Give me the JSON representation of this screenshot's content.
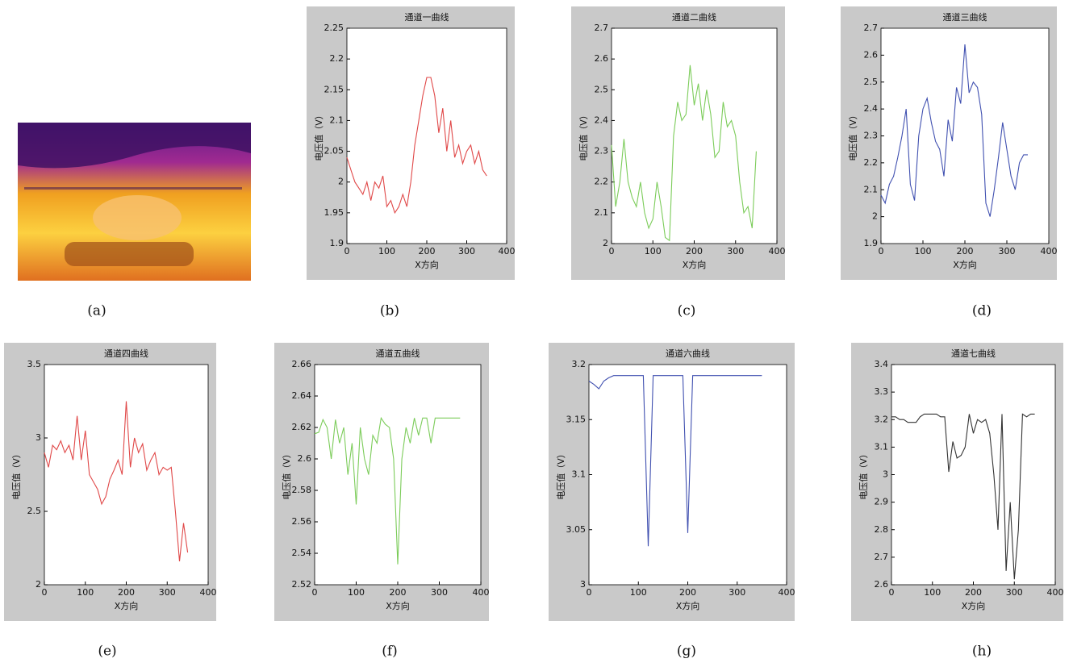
{
  "image_caption": "(a)",
  "chart_data": [
    {
      "type": "line",
      "title": "通道一曲线",
      "xlabel": "X方向",
      "ylabel": "电压值（V）",
      "caption": "(b)",
      "color": "#e04848",
      "xlim": [
        0,
        400
      ],
      "xticks": [
        0,
        100,
        200,
        300,
        400
      ],
      "ylim": [
        1.9,
        2.25
      ],
      "yticks": [
        1.9,
        1.95,
        2,
        2.05,
        2.1,
        2.15,
        2.2,
        2.25
      ],
      "x": [
        0,
        10,
        20,
        30,
        40,
        50,
        60,
        70,
        80,
        90,
        100,
        110,
        120,
        130,
        140,
        150,
        160,
        170,
        180,
        190,
        200,
        210,
        220,
        230,
        240,
        250,
        260,
        270,
        280,
        290,
        300,
        310,
        320,
        330,
        340,
        350
      ],
      "values": [
        2.04,
        2.02,
        2.0,
        1.99,
        1.98,
        2.0,
        1.97,
        2.0,
        1.99,
        2.01,
        1.96,
        1.97,
        1.95,
        1.96,
        1.98,
        1.96,
        2.0,
        2.06,
        2.1,
        2.14,
        2.17,
        2.17,
        2.14,
        2.08,
        2.12,
        2.05,
        2.1,
        2.04,
        2.06,
        2.03,
        2.05,
        2.06,
        2.03,
        2.05,
        2.02,
        2.01
      ]
    },
    {
      "type": "line",
      "title": "通道二曲线",
      "xlabel": "X方向",
      "ylabel": "电压值（V）",
      "caption": "(c)",
      "color": "#7ccc5a",
      "xlim": [
        0,
        400
      ],
      "xticks": [
        0,
        100,
        200,
        300,
        400
      ],
      "ylim": [
        2,
        2.7
      ],
      "yticks": [
        2,
        2.1,
        2.2,
        2.3,
        2.4,
        2.5,
        2.6,
        2.7
      ],
      "x": [
        0,
        10,
        20,
        30,
        40,
        50,
        60,
        70,
        80,
        90,
        100,
        110,
        120,
        130,
        140,
        150,
        160,
        170,
        180,
        190,
        200,
        210,
        220,
        230,
        240,
        250,
        260,
        270,
        280,
        290,
        300,
        310,
        320,
        330,
        340,
        350
      ],
      "values": [
        2.32,
        2.12,
        2.2,
        2.34,
        2.2,
        2.15,
        2.12,
        2.2,
        2.1,
        2.05,
        2.08,
        2.2,
        2.12,
        2.02,
        2.01,
        2.35,
        2.46,
        2.4,
        2.42,
        2.58,
        2.45,
        2.52,
        2.4,
        2.5,
        2.42,
        2.28,
        2.3,
        2.46,
        2.38,
        2.4,
        2.35,
        2.2,
        2.1,
        2.12,
        2.05,
        2.3
      ]
    },
    {
      "type": "line",
      "title": "通道三曲线",
      "xlabel": "X方向",
      "ylabel": "电压值（V）",
      "caption": "(d)",
      "color": "#4050b0",
      "xlim": [
        0,
        400
      ],
      "xticks": [
        0,
        100,
        200,
        300,
        400
      ],
      "ylim": [
        1.9,
        2.7
      ],
      "yticks": [
        1.9,
        2,
        2.1,
        2.2,
        2.3,
        2.4,
        2.5,
        2.6,
        2.7
      ],
      "x": [
        0,
        10,
        20,
        30,
        40,
        50,
        60,
        70,
        80,
        90,
        100,
        110,
        120,
        130,
        140,
        150,
        160,
        170,
        180,
        190,
        200,
        210,
        220,
        230,
        240,
        250,
        260,
        270,
        280,
        290,
        300,
        310,
        320,
        330,
        340,
        350
      ],
      "values": [
        2.08,
        2.05,
        2.12,
        2.15,
        2.22,
        2.3,
        2.4,
        2.12,
        2.06,
        2.3,
        2.4,
        2.44,
        2.35,
        2.28,
        2.25,
        2.15,
        2.36,
        2.28,
        2.48,
        2.42,
        2.64,
        2.46,
        2.5,
        2.48,
        2.38,
        2.05,
        2.0,
        2.1,
        2.22,
        2.35,
        2.25,
        2.15,
        2.1,
        2.2,
        2.23,
        2.23
      ]
    },
    {
      "type": "line",
      "title": "通道四曲线",
      "xlabel": "X方向",
      "ylabel": "电压值（V）",
      "caption": "(e)",
      "color": "#e04848",
      "xlim": [
        0,
        400
      ],
      "xticks": [
        0,
        100,
        200,
        300,
        400
      ],
      "ylim": [
        2,
        3.5
      ],
      "yticks": [
        2,
        2.5,
        3,
        3.5
      ],
      "x": [
        0,
        10,
        20,
        30,
        40,
        50,
        60,
        70,
        80,
        90,
        100,
        110,
        120,
        130,
        140,
        150,
        160,
        170,
        180,
        190,
        200,
        210,
        220,
        230,
        240,
        250,
        260,
        270,
        280,
        290,
        300,
        310,
        320,
        330,
        340,
        350
      ],
      "values": [
        2.9,
        2.8,
        2.95,
        2.92,
        2.98,
        2.9,
        2.95,
        2.85,
        3.15,
        2.85,
        3.05,
        2.75,
        2.7,
        2.65,
        2.55,
        2.6,
        2.72,
        2.78,
        2.85,
        2.75,
        3.25,
        2.8,
        3.0,
        2.9,
        2.96,
        2.78,
        2.85,
        2.9,
        2.75,
        2.8,
        2.78,
        2.8,
        2.5,
        2.16,
        2.42,
        2.22
      ]
    },
    {
      "type": "line",
      "title": "通道五曲线",
      "xlabel": "X方向",
      "ylabel": "电压值（V）",
      "caption": "(f)",
      "color": "#7ccc5a",
      "xlim": [
        0,
        400
      ],
      "xticks": [
        0,
        100,
        200,
        300,
        400
      ],
      "ylim": [
        2.52,
        2.66
      ],
      "yticks": [
        2.52,
        2.54,
        2.56,
        2.58,
        2.6,
        2.62,
        2.64,
        2.66
      ],
      "x": [
        0,
        10,
        20,
        30,
        40,
        50,
        60,
        70,
        80,
        90,
        100,
        110,
        120,
        130,
        140,
        150,
        160,
        170,
        180,
        190,
        200,
        210,
        220,
        230,
        240,
        250,
        260,
        270,
        280,
        290,
        300,
        310,
        320,
        330,
        340,
        350
      ],
      "values": [
        2.616,
        2.617,
        2.625,
        2.62,
        2.6,
        2.625,
        2.61,
        2.62,
        2.59,
        2.61,
        2.571,
        2.62,
        2.6,
        2.59,
        2.615,
        2.61,
        2.626,
        2.622,
        2.62,
        2.6,
        2.533,
        2.6,
        2.62,
        2.61,
        2.626,
        2.615,
        2.626,
        2.626,
        2.61,
        2.626,
        2.626,
        2.626,
        2.626,
        2.626,
        2.626,
        2.626
      ]
    },
    {
      "type": "line",
      "title": "通道六曲线",
      "xlabel": "X方向",
      "ylabel": "电压值（V）",
      "caption": "(g)",
      "color": "#4050b0",
      "xlim": [
        0,
        400
      ],
      "xticks": [
        0,
        100,
        200,
        300,
        400
      ],
      "ylim": [
        3,
        3.2
      ],
      "yticks": [
        3,
        3.05,
        3.1,
        3.15,
        3.2
      ],
      "x": [
        0,
        10,
        20,
        30,
        40,
        50,
        60,
        70,
        80,
        90,
        100,
        110,
        120,
        130,
        140,
        150,
        160,
        170,
        180,
        190,
        200,
        210,
        220,
        230,
        240,
        250,
        260,
        270,
        280,
        290,
        300,
        310,
        320,
        330,
        340,
        350
      ],
      "values": [
        3.185,
        3.182,
        3.178,
        3.185,
        3.188,
        3.19,
        3.19,
        3.19,
        3.19,
        3.19,
        3.19,
        3.19,
        3.035,
        3.19,
        3.19,
        3.19,
        3.19,
        3.19,
        3.19,
        3.19,
        3.047,
        3.19,
        3.19,
        3.19,
        3.19,
        3.19,
        3.19,
        3.19,
        3.19,
        3.19,
        3.19,
        3.19,
        3.19,
        3.19,
        3.19,
        3.19
      ]
    },
    {
      "type": "line",
      "title": "通道七曲线",
      "xlabel": "X方向",
      "ylabel": "电压值（V）",
      "caption": "(h)",
      "color": "#333333",
      "xlim": [
        0,
        400
      ],
      "xticks": [
        0,
        100,
        200,
        300,
        400
      ],
      "ylim": [
        2.6,
        3.4
      ],
      "yticks": [
        2.6,
        2.7,
        2.8,
        2.9,
        3,
        3.1,
        3.2,
        3.3,
        3.4
      ],
      "x": [
        0,
        10,
        20,
        30,
        40,
        50,
        60,
        70,
        80,
        90,
        100,
        110,
        120,
        130,
        140,
        150,
        160,
        170,
        180,
        190,
        200,
        210,
        220,
        230,
        240,
        250,
        260,
        270,
        280,
        290,
        300,
        310,
        320,
        330,
        340,
        350
      ],
      "values": [
        3.21,
        3.21,
        3.2,
        3.2,
        3.19,
        3.19,
        3.19,
        3.21,
        3.22,
        3.22,
        3.22,
        3.22,
        3.21,
        3.21,
        3.01,
        3.12,
        3.06,
        3.07,
        3.1,
        3.22,
        3.15,
        3.2,
        3.19,
        3.2,
        3.15,
        3.0,
        2.8,
        3.22,
        2.65,
        2.9,
        2.62,
        2.8,
        3.22,
        3.21,
        3.22,
        3.22
      ]
    }
  ]
}
